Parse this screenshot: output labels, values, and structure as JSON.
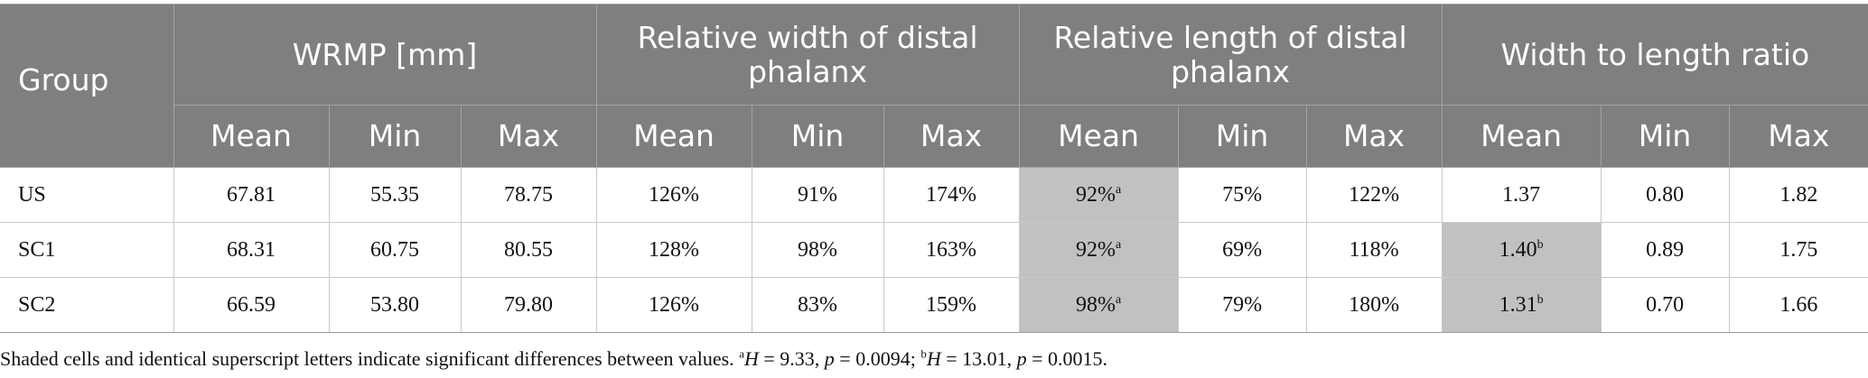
{
  "table": {
    "group_header": "Group",
    "column_groups": [
      "WRMP [mm]",
      "Relative width of distal phalanx",
      "Relative length of distal phalanx",
      "Width to length ratio"
    ],
    "sub_headers": [
      "Mean",
      "Min",
      "Max",
      "Mean",
      "Min",
      "Max",
      "Mean",
      "Min",
      "Max",
      "Mean",
      "Min",
      "Max"
    ],
    "shade_color": "#c2c0c0",
    "header_color": "#7f7f7d",
    "rows": [
      {
        "group": "US",
        "cells": [
          {
            "v": "67.81"
          },
          {
            "v": "55.35"
          },
          {
            "v": "78.75"
          },
          {
            "v": "126%"
          },
          {
            "v": "91%"
          },
          {
            "v": "174%"
          },
          {
            "v": "92%",
            "sup": "a",
            "shaded": true
          },
          {
            "v": "75%"
          },
          {
            "v": "122%"
          },
          {
            "v": "1.37"
          },
          {
            "v": "0.80"
          },
          {
            "v": "1.82"
          }
        ]
      },
      {
        "group": "SC1",
        "cells": [
          {
            "v": "68.31"
          },
          {
            "v": "60.75"
          },
          {
            "v": "80.55"
          },
          {
            "v": "128%"
          },
          {
            "v": "98%"
          },
          {
            "v": "163%"
          },
          {
            "v": "92%",
            "sup": "a",
            "shaded": true
          },
          {
            "v": "69%"
          },
          {
            "v": "118%"
          },
          {
            "v": "1.40",
            "sup": "b",
            "shaded": true
          },
          {
            "v": "0.89"
          },
          {
            "v": "1.75"
          }
        ]
      },
      {
        "group": "SC2",
        "cells": [
          {
            "v": "66.59"
          },
          {
            "v": "53.80"
          },
          {
            "v": "79.80"
          },
          {
            "v": "126%"
          },
          {
            "v": "83%"
          },
          {
            "v": "159%"
          },
          {
            "v": "98%",
            "sup": "a",
            "shaded": true
          },
          {
            "v": "79%"
          },
          {
            "v": "180%"
          },
          {
            "v": "1.31",
            "sup": "b",
            "shaded": true
          },
          {
            "v": "0.70"
          },
          {
            "v": "1.66"
          }
        ]
      }
    ]
  },
  "footnote": {
    "text": "Shaded cells and identical superscript letters indicate significant differences between values. ",
    "note_a_sup": "a",
    "note_a_stat": "H",
    "note_a_value": " = 9.33, ",
    "note_a_p": "p",
    "note_a_pvalue": " = 0.0094; ",
    "note_b_sup": "b",
    "note_b_stat": "H",
    "note_b_value": " = 13.01, ",
    "note_b_p": "p",
    "note_b_pvalue": " = 0.0015."
  }
}
